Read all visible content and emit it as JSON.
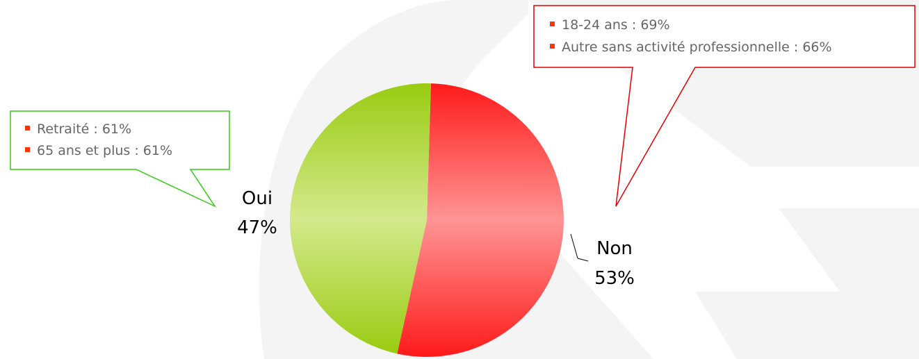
{
  "chart_data": {
    "type": "pie",
    "slices": [
      {
        "label": "Non",
        "value_label": "53%",
        "value": 53,
        "color": "#ff1a1a"
      },
      {
        "label": "Oui",
        "value_label": "47%",
        "value": 47,
        "color": "#99cc11"
      }
    ]
  },
  "callouts": {
    "non": {
      "border_color": "#e00000",
      "items": [
        "18-24 ans : 69%",
        "Autre sans activité professionnelle : 66%"
      ]
    },
    "oui": {
      "border_color": "#33cc11",
      "items": [
        "Retraité : 61%",
        "65 ans et plus : 61%"
      ]
    }
  },
  "colors": {
    "bullet": "#ff3300",
    "callout_text": "#666666",
    "label_text": "#000000",
    "watermark": "#f2f2f2"
  }
}
